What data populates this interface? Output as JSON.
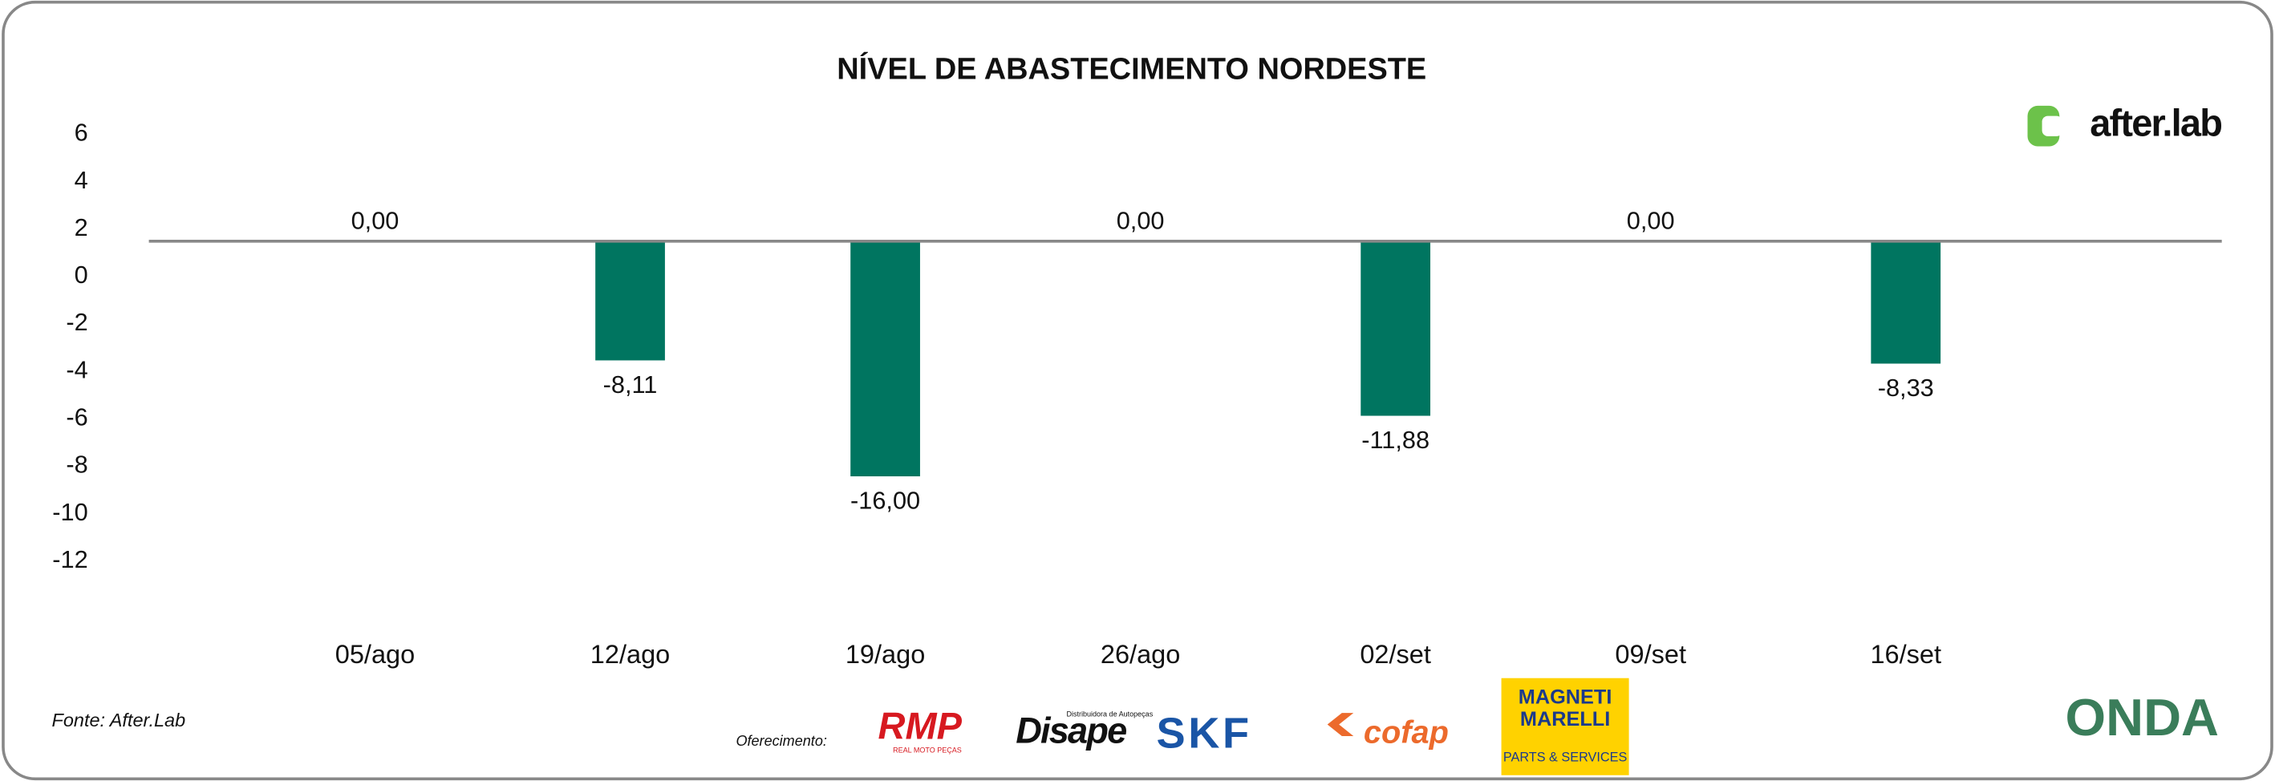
{
  "chart_data": {
    "type": "bar",
    "title": "NÍVEL DE ABASTECIMENTO NORDESTE",
    "categories": [
      "05/ago",
      "12/ago",
      "19/ago",
      "26/ago",
      "02/set",
      "09/set",
      "16/set"
    ],
    "series": [
      {
        "color": "#007560",
        "axis": "y2",
        "values": [
          0,
          -8.11,
          -16,
          0,
          -11.88,
          0,
          -8.33
        ],
        "value_labels": [
          "0,00",
          "-8,11",
          "-16,00",
          "0,00",
          "-11,88",
          "0,00",
          "-8,33"
        ]
      }
    ],
    "ylim": [
      -14,
      8
    ],
    "yticks": [
      6,
      4,
      2,
      0,
      -2,
      -4,
      -6,
      -8,
      -10,
      -12
    ],
    "y2lim": [
      -25,
      10.5
    ],
    "grid": false,
    "source": "Fonte: After.Lab",
    "brand": "after.lab",
    "sponsor_label": "Oferecimento:",
    "sponsors": [
      "RMP",
      "REAL MOTO PEÇAS",
      "Disape",
      "Distribuidora de Autopeças",
      "SKF",
      "cofap",
      "MAGNETI",
      "MARELLI",
      "PARTS & SERVICES",
      "ONDA"
    ]
  }
}
